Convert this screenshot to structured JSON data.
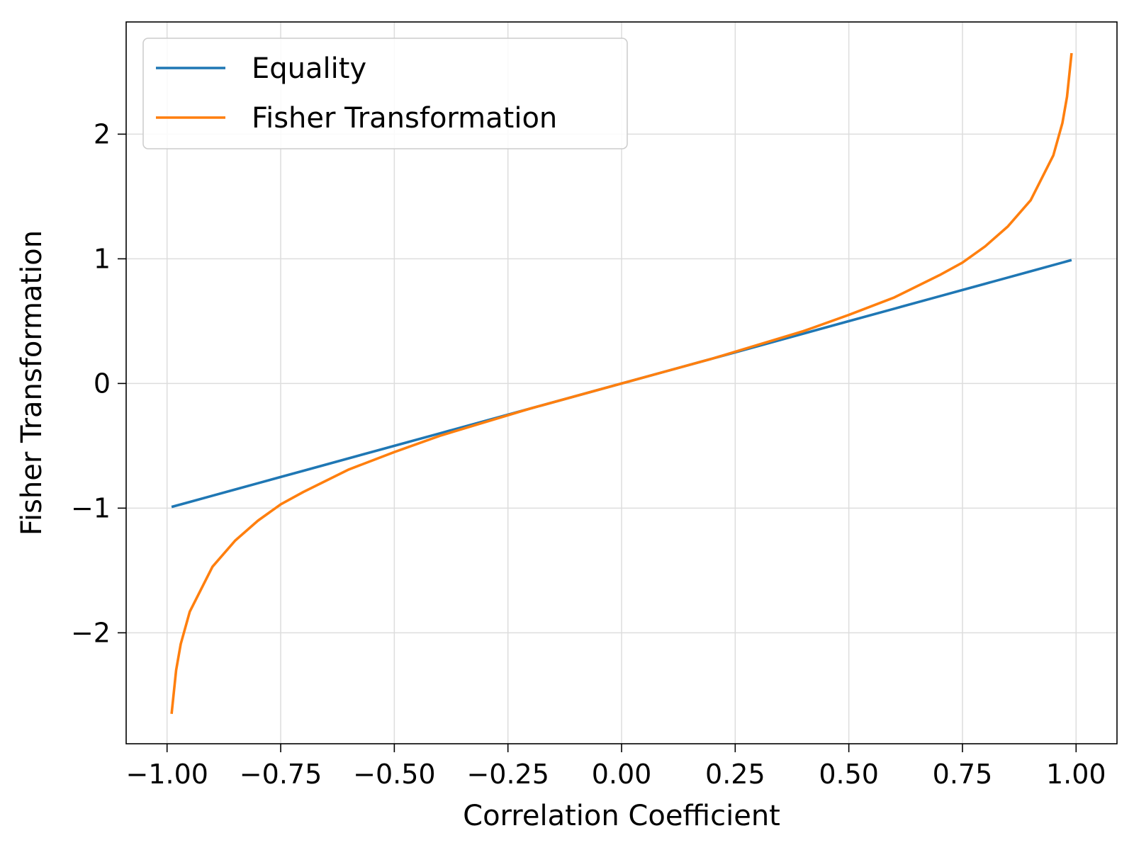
{
  "chart_data": {
    "type": "line",
    "title": "",
    "xlabel": "Correlation Coefficient",
    "ylabel": "Fisher Transformation",
    "xlim": [
      -1.09,
      1.09
    ],
    "ylim": [
      -2.89,
      2.9
    ],
    "x_ticks": [
      -1.0,
      -0.75,
      -0.5,
      -0.25,
      0.0,
      0.25,
      0.5,
      0.75,
      1.0
    ],
    "x_tick_labels": [
      "−1.00",
      "−0.75",
      "−0.50",
      "−0.25",
      "0.00",
      "0.25",
      "0.50",
      "0.75",
      "1.00"
    ],
    "y_ticks": [
      -2,
      -1,
      0,
      1,
      2
    ],
    "y_tick_labels": [
      "−2",
      "−1",
      "0",
      "1",
      "2"
    ],
    "grid": true,
    "legend_position": "upper-left",
    "x": [
      -0.99,
      -0.98,
      -0.97,
      -0.95,
      -0.9,
      -0.85,
      -0.8,
      -0.75,
      -0.7,
      -0.6,
      -0.5,
      -0.4,
      -0.3,
      -0.2,
      -0.1,
      0.0,
      0.1,
      0.2,
      0.3,
      0.4,
      0.5,
      0.6,
      0.7,
      0.75,
      0.8,
      0.85,
      0.9,
      0.95,
      0.97,
      0.98,
      0.99
    ],
    "series": [
      {
        "name": "Equality",
        "color": "#1f77b4",
        "values": [
          -0.99,
          -0.98,
          -0.97,
          -0.95,
          -0.9,
          -0.85,
          -0.8,
          -0.75,
          -0.7,
          -0.6,
          -0.5,
          -0.4,
          -0.3,
          -0.2,
          -0.1,
          0.0,
          0.1,
          0.2,
          0.3,
          0.4,
          0.5,
          0.6,
          0.7,
          0.75,
          0.8,
          0.85,
          0.9,
          0.95,
          0.97,
          0.98,
          0.99
        ]
      },
      {
        "name": "Fisher Transformation",
        "color": "#ff7f0e",
        "values": [
          -2.65,
          -2.3,
          -2.09,
          -1.83,
          -1.47,
          -1.26,
          -1.1,
          -0.97,
          -0.87,
          -0.69,
          -0.55,
          -0.42,
          -0.31,
          -0.2,
          -0.1,
          0.0,
          0.1,
          0.2,
          0.31,
          0.42,
          0.55,
          0.69,
          0.87,
          0.97,
          1.1,
          1.26,
          1.47,
          1.83,
          2.09,
          2.3,
          2.65
        ]
      }
    ]
  }
}
